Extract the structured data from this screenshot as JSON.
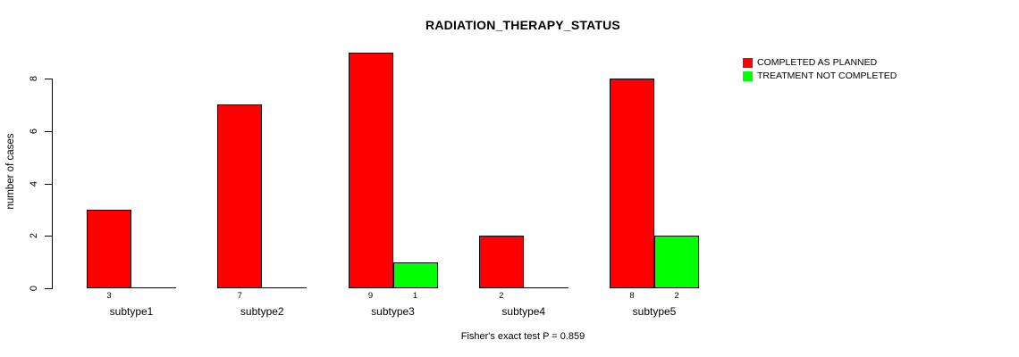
{
  "chart_data": {
    "type": "bar",
    "title": "RADIATION_THERAPY_STATUS",
    "ylabel": "number of cases",
    "xlabel": "",
    "footer": "Fisher's exact test P = 0.859",
    "categories": [
      "subtype1",
      "subtype2",
      "subtype3",
      "subtype4",
      "subtype5"
    ],
    "series": [
      {
        "name": "COMPLETED AS PLANNED",
        "color": "#FF0000",
        "values": [
          3,
          7,
          9,
          2,
          8
        ]
      },
      {
        "name": "TREATMENT NOT COMPLETED",
        "color": "#00FF00",
        "values": [
          0,
          0,
          1,
          0,
          2
        ]
      }
    ],
    "yticks": [
      0,
      2,
      4,
      6,
      8
    ],
    "ylim": [
      0,
      9
    ],
    "grid": false,
    "legend_position": "top-right",
    "bar_value_labels": true,
    "hide_zero_value_labels": true
  },
  "colors": {
    "series_completed": "#FF0000",
    "series_not_completed": "#00FF00",
    "axis": "#000000",
    "text": "#000000",
    "background": "#FFFFFF"
  }
}
